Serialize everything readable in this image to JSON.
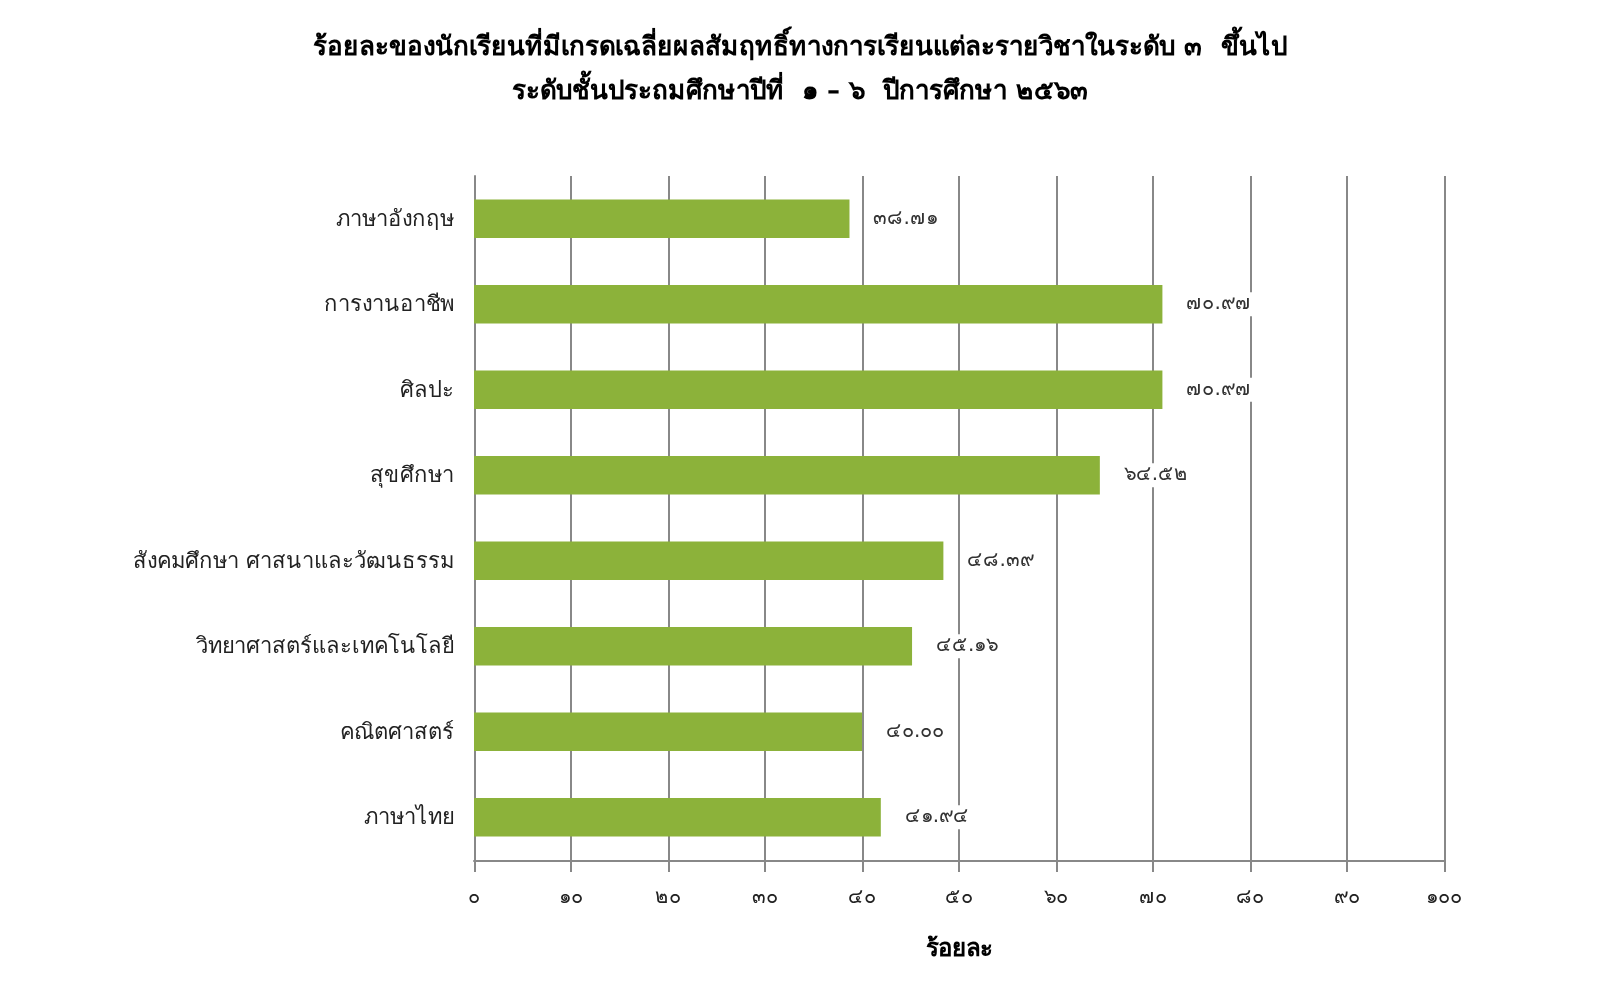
{
  "chart_data": {
    "type": "bar",
    "orientation": "horizontal",
    "title": "ร้อยละของนักเรียนที่มีเกรดเฉลี่ยผลสัมฤทธิ์ทางการเรียนแต่ละรายวิชาในระดับ ๓  ขึ้นไป\nระดับชั้นประถมศึกษาปีที่  ๑ – ๖  ปีการศึกษา ๒๕๖๓",
    "xlabel": "ร้อยละ",
    "categories": [
      "ภาษาอังกฤษ",
      "การงานอาชีพ",
      "ศิลปะ",
      "สุขศึกษา",
      "สังคมศึกษา ศาสนาและวัฒนธรรม",
      "วิทยาศาสตร์และเทคโนโลยี",
      "คณิตศาสตร์",
      "ภาษาไทย"
    ],
    "values": [
      38.71,
      70.97,
      70.97,
      64.52,
      48.39,
      45.16,
      40.0,
      41.94
    ],
    "value_labels": [
      "๓๘.๗๑",
      "๗๐.๙๗",
      "๗๐.๙๗",
      "๖๔.๕๒",
      "๔๘.๓๙",
      "๔๕.๑๖",
      "๔๐.๐๐",
      "๔๑.๙๔"
    ],
    "color": "#8cb23a",
    "xlim": [
      0,
      100
    ],
    "xticks": [
      {
        "value": 0,
        "label": "๐"
      },
      {
        "value": 10,
        "label": "๑๐"
      },
      {
        "value": 20,
        "label": "๒๐"
      },
      {
        "value": 30,
        "label": "๓๐"
      },
      {
        "value": 40,
        "label": "๔๐"
      },
      {
        "value": 50,
        "label": "๕๐"
      },
      {
        "value": 60,
        "label": "๖๐"
      },
      {
        "value": 70,
        "label": "๗๐"
      },
      {
        "value": 80,
        "label": "๘๐"
      },
      {
        "value": 90,
        "label": "๙๐"
      },
      {
        "value": 100,
        "label": "๑๐๐"
      }
    ],
    "grid": "x"
  }
}
